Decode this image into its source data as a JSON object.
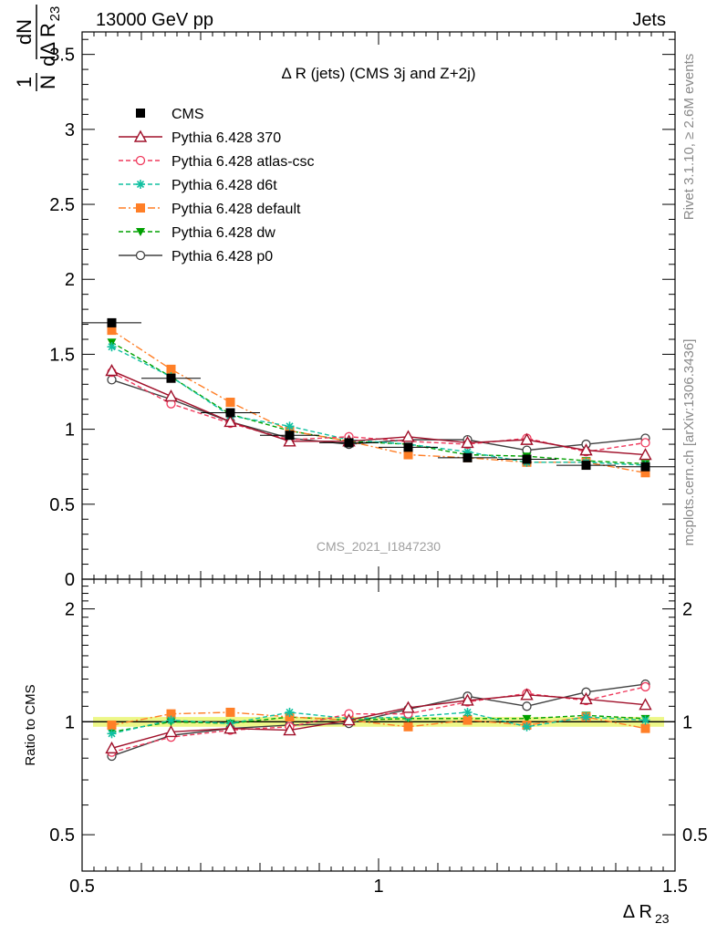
{
  "header": {
    "left": "13000 GeV pp",
    "right": "Jets"
  },
  "side_labels": {
    "rivet": "Rivet 3.1.10, ≥ 2.6M events",
    "mcplots": "mcplots.cern.ch [arXiv:1306.3436]"
  },
  "chart_data": [
    {
      "type": "line",
      "title": "Δ R (jets) (CMS 3j and Z+2j)",
      "ylabel": "1/N dN/dΔ R23",
      "watermark": "CMS_2021_I1847230",
      "xlim": [
        0.5,
        1.5
      ],
      "ylim": [
        0,
        3.65
      ],
      "yticks": [
        0,
        0.5,
        1,
        1.5,
        2,
        2.5,
        3,
        3.5
      ],
      "ytick_labels": [
        "0",
        "0.5",
        "1",
        "1.5",
        "2",
        "2.5",
        "3",
        "3.5"
      ],
      "x": [
        0.55,
        0.65,
        0.75,
        0.85,
        0.95,
        1.05,
        1.15,
        1.25,
        1.35,
        1.45
      ],
      "legend": "top-left",
      "series": [
        {
          "name": "CMS",
          "color": "#000000",
          "marker": "square",
          "line": "none",
          "values": [
            1.71,
            1.34,
            1.11,
            0.96,
            0.91,
            0.88,
            0.81,
            0.8,
            0.76,
            0.75
          ]
        },
        {
          "name": "Pythia 6.428 370",
          "color": "#a0102a",
          "marker": "triangle-open",
          "line": "solid",
          "values": [
            1.39,
            1.22,
            1.05,
            0.92,
            0.92,
            0.95,
            0.91,
            0.93,
            0.86,
            0.83
          ]
        },
        {
          "name": "Pythia 6.428 atlas-csc",
          "color": "#ef3a5d",
          "marker": "circle-open",
          "line": "dashed",
          "values": [
            1.38,
            1.17,
            1.04,
            0.93,
            0.95,
            0.92,
            0.9,
            0.94,
            0.85,
            0.91
          ]
        },
        {
          "name": "Pythia 6.428 d6t",
          "color": "#10c0a0",
          "marker": "star",
          "line": "dashed",
          "values": [
            1.55,
            1.35,
            1.09,
            1.02,
            0.93,
            0.9,
            0.85,
            0.78,
            0.78,
            0.76
          ]
        },
        {
          "name": "Pythia 6.428 default",
          "color": "#ff7f27",
          "marker": "square",
          "line": "dashdot",
          "values": [
            1.66,
            1.4,
            1.18,
            0.99,
            0.92,
            0.83,
            0.81,
            0.78,
            0.78,
            0.71
          ]
        },
        {
          "name": "Pythia 6.428 dw",
          "color": "#00a000",
          "marker": "triangle-down",
          "line": "dashed",
          "values": [
            1.58,
            1.35,
            1.1,
            0.99,
            0.92,
            0.9,
            0.83,
            0.82,
            0.79,
            0.77
          ]
        },
        {
          "name": "Pythia 6.428 p0",
          "color": "#404040",
          "marker": "circle-open",
          "line": "solid",
          "values": [
            1.33,
            1.2,
            1.05,
            0.94,
            0.9,
            0.93,
            0.93,
            0.86,
            0.9,
            0.94
          ]
        }
      ]
    },
    {
      "type": "line",
      "ylabel": "Ratio to CMS",
      "xlabel": "Δ R23",
      "xlim": [
        0.5,
        1.5
      ],
      "ylim": [
        0.4,
        2.4
      ],
      "log_y": true,
      "xticks": [
        0.5,
        1,
        1.5
      ],
      "xtick_labels": [
        "0.5",
        "1",
        "1.5"
      ],
      "yticks": [
        0.5,
        1,
        2
      ],
      "ytick_labels": [
        "0.5",
        "1",
        "2"
      ],
      "x": [
        0.55,
        0.65,
        0.75,
        0.85,
        0.95,
        1.05,
        1.15,
        1.25,
        1.35,
        1.45
      ],
      "band": {
        "color": "#e8f56a",
        "lower": 0.97,
        "upper": 1.03
      },
      "series": [
        {
          "name": "Pythia 6.428 370",
          "color": "#a0102a",
          "marker": "triangle-open",
          "line": "solid",
          "values": [
            0.85,
            0.94,
            0.96,
            0.95,
            1.01,
            1.09,
            1.14,
            1.18,
            1.15,
            1.11
          ]
        },
        {
          "name": "Pythia 6.428 atlas-csc",
          "color": "#ef3a5d",
          "marker": "circle-open",
          "line": "dashed",
          "values": [
            0.83,
            0.91,
            0.95,
            0.97,
            1.05,
            1.05,
            1.13,
            1.19,
            1.14,
            1.24
          ]
        },
        {
          "name": "Pythia 6.428 d6t",
          "color": "#10c0a0",
          "marker": "star",
          "line": "dashed",
          "values": [
            0.93,
            1.01,
            0.99,
            1.06,
            1.02,
            1.03,
            1.06,
            0.97,
            1.03,
            1.01
          ]
        },
        {
          "name": "Pythia 6.428 default",
          "color": "#ff7f27",
          "marker": "square",
          "line": "dashdot",
          "values": [
            0.98,
            1.05,
            1.06,
            1.03,
            1.01,
            0.97,
            1.01,
            0.98,
            1.03,
            0.96
          ]
        },
        {
          "name": "Pythia 6.428 dw",
          "color": "#00a000",
          "marker": "triangle-down",
          "line": "dashed",
          "values": [
            0.94,
            1.0,
            0.99,
            1.03,
            1.01,
            1.02,
            1.02,
            1.02,
            1.04,
            1.02
          ]
        },
        {
          "name": "Pythia 6.428 p0",
          "color": "#404040",
          "marker": "circle-open",
          "line": "solid",
          "values": [
            0.81,
            0.92,
            0.96,
            0.98,
            0.99,
            1.08,
            1.17,
            1.1,
            1.2,
            1.26
          ]
        }
      ]
    }
  ]
}
